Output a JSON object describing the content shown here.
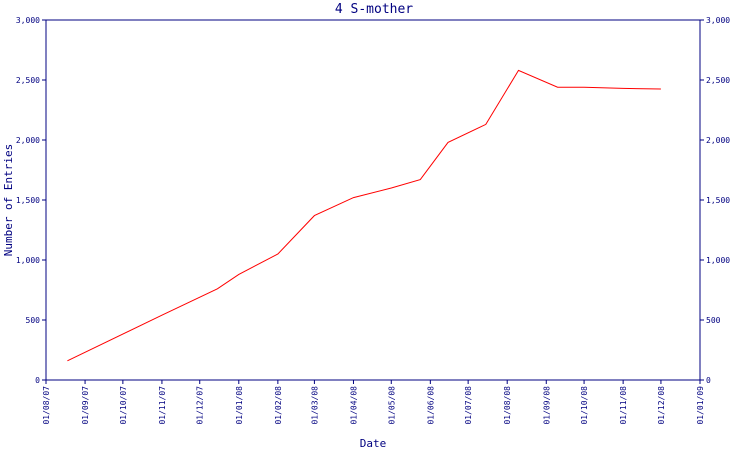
{
  "chart_data": {
    "type": "line",
    "title": "4 S-mother",
    "xlabel": "Date",
    "ylabel": "Number of Entries",
    "grid": false,
    "x_ticks": [
      "01/08/07",
      "01/09/07",
      "01/10/07",
      "01/11/07",
      "01/12/07",
      "01/01/08",
      "01/02/08",
      "01/03/08",
      "01/04/08",
      "01/05/08",
      "01/06/08",
      "01/07/08",
      "01/08/08",
      "01/09/08",
      "01/10/08",
      "01/11/08",
      "01/12/08",
      "01/01/09"
    ],
    "xlim": [
      "2007-08-01",
      "2009-01-01"
    ],
    "ylim": [
      0,
      3000
    ],
    "y_ticks": [
      0,
      500,
      1000,
      1500,
      2000,
      2500,
      3000
    ],
    "y_tick_labels": [
      "0",
      "500",
      "1,000",
      "1,500",
      "2,000",
      "2,500",
      "3,000"
    ],
    "series": [
      {
        "color": "#ff0000",
        "x": [
          "2007-08-18",
          "2007-11-01",
          "2007-12-15",
          "2008-01-01",
          "2008-02-01",
          "2008-03-01",
          "2008-04-01",
          "2008-05-01",
          "2008-05-24",
          "2008-06-15",
          "2008-07-15",
          "2008-08-10",
          "2008-09-10",
          "2008-10-01",
          "2008-11-01",
          "2008-12-01"
        ],
        "y": [
          160,
          540,
          760,
          880,
          1050,
          1370,
          1520,
          1600,
          1670,
          1980,
          2130,
          2580,
          2440,
          2440,
          2430,
          2425
        ]
      }
    ]
  }
}
